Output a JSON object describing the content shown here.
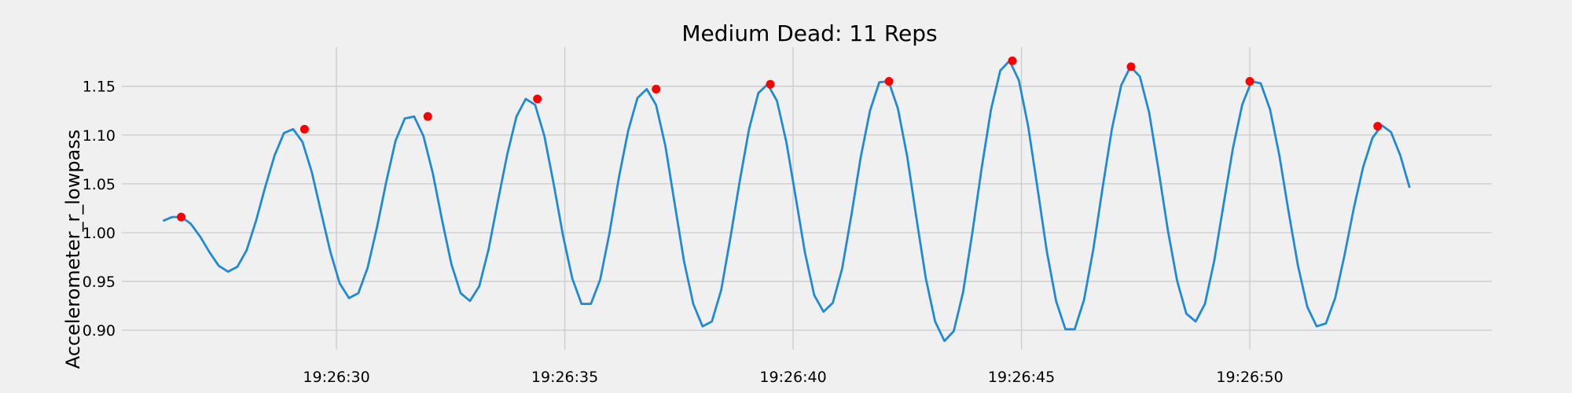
{
  "chart_data": {
    "type": "line",
    "title": "Medium Dead: 11 Reps",
    "xlabel": "",
    "ylabel": "Accelerometer_r_lowpass",
    "x_start": "19:26:26.2",
    "x_end": "19:26:53.5",
    "xlim": [
      "19:26:25.3",
      "19:26:55.3"
    ],
    "ylim": [
      0.88,
      1.19
    ],
    "grid": true,
    "colors": {
      "line": "#1f8ad6",
      "peaks": "#ff0000",
      "background": "#f0f0f0"
    },
    "xticks": [
      "19:26:30",
      "19:26:35",
      "19:26:40",
      "19:26:45",
      "19:26:50"
    ],
    "yticks": [
      "0.90",
      "0.95",
      "1.00",
      "1.05",
      "1.10",
      "1.15"
    ],
    "series": [
      {
        "values": [
          1.012,
          1.016,
          1.016,
          1.009,
          0.996,
          0.98,
          0.966,
          0.96,
          0.965,
          0.982,
          1.012,
          1.047,
          1.079,
          1.102,
          1.106,
          1.093,
          1.062,
          1.021,
          0.98,
          0.948,
          0.933,
          0.938,
          0.964,
          1.005,
          1.052,
          1.094,
          1.117,
          1.119,
          1.099,
          1.061,
          1.013,
          0.968,
          0.938,
          0.93,
          0.945,
          0.983,
          1.032,
          1.08,
          1.119,
          1.137,
          1.131,
          1.099,
          1.05,
          0.997,
          0.953,
          0.927,
          0.927,
          0.952,
          1.0,
          1.056,
          1.104,
          1.138,
          1.147,
          1.131,
          1.089,
          1.03,
          0.971,
          0.927,
          0.904,
          0.909,
          0.941,
          0.995,
          1.053,
          1.106,
          1.143,
          1.152,
          1.135,
          1.093,
          1.037,
          0.98,
          0.936,
          0.919,
          0.928,
          0.963,
          1.018,
          1.077,
          1.125,
          1.154,
          1.155,
          1.127,
          1.078,
          1.014,
          0.953,
          0.909,
          0.889,
          0.899,
          0.939,
          1.0,
          1.066,
          1.126,
          1.166,
          1.176,
          1.156,
          1.109,
          1.046,
          0.981,
          0.93,
          0.901,
          0.901,
          0.931,
          0.983,
          1.046,
          1.106,
          1.151,
          1.17,
          1.16,
          1.123,
          1.065,
          1.003,
          0.951,
          0.917,
          0.909,
          0.927,
          0.971,
          1.029,
          1.086,
          1.131,
          1.155,
          1.153,
          1.126,
          1.079,
          1.021,
          0.966,
          0.924,
          0.904,
          0.907,
          0.933,
          0.977,
          1.025,
          1.067,
          1.097,
          1.11,
          1.103,
          1.079,
          1.046
        ]
      },
      {
        "name": "peaks",
        "x": [
          "19:26:26.6",
          "19:26:29.3",
          "19:26:32.0",
          "19:26:34.4",
          "19:26:37.0",
          "19:26:39.5",
          "19:26:42.1",
          "19:26:44.8",
          "19:26:47.4",
          "19:26:50.0",
          "19:26:52.8"
        ],
        "values": [
          1.016,
          1.106,
          1.119,
          1.137,
          1.147,
          1.152,
          1.155,
          1.176,
          1.17,
          1.155,
          1.109
        ]
      }
    ]
  }
}
